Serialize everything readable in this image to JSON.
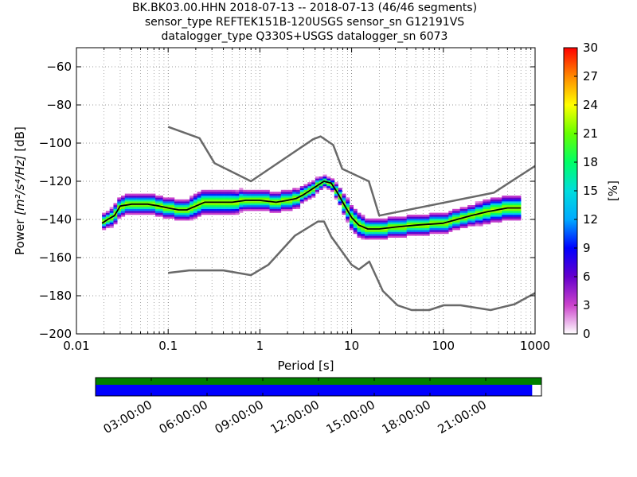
{
  "chart_data": {
    "type": "heatmap",
    "title_lines": [
      "BK.BK03.00.HHN   2018-07-13 -- 2018-07-13  (46/46 segments)",
      "sensor_type REFTEK151B-120USGS sensor_sn G12191VS",
      "datalogger_type Q330S+USGS datalogger_sn 6073"
    ],
    "xlabel": "Period [s]",
    "ylabel_prefix": "Power ",
    "ylabel_units": "[m²/s⁴/Hz]",
    "ylabel_suffix": " [dB]",
    "x_scale": "log",
    "xlim": [
      0.01,
      1000
    ],
    "ylim": [
      -200,
      -50
    ],
    "x_ticks": [
      0.01,
      0.1,
      1,
      10,
      100,
      1000
    ],
    "x_tick_labels": [
      "0.01",
      "0.1",
      "1",
      "10",
      "100",
      "1000"
    ],
    "y_ticks": [
      -200,
      -180,
      -160,
      -140,
      -120,
      -100,
      -80,
      -60
    ],
    "y_tick_labels": [
      "−200",
      "−180",
      "−160",
      "−140",
      "−120",
      "−100",
      "−80",
      "−60"
    ],
    "grid": "dotted",
    "colorbar": {
      "label": "[%]",
      "range": [
        0,
        30
      ],
      "ticks": [
        0,
        3,
        6,
        9,
        12,
        15,
        18,
        21,
        24,
        27,
        30
      ],
      "tick_labels": [
        "0",
        "3",
        "6",
        "9",
        "12",
        "15",
        "18",
        "21",
        "24",
        "27",
        "30"
      ]
    },
    "series": [
      {
        "role": "mode",
        "color": "#000000",
        "x": [
          0.019,
          0.022,
          0.026,
          0.03,
          0.04,
          0.06,
          0.08,
          0.1,
          0.13,
          0.16,
          0.2,
          0.25,
          0.3,
          0.4,
          0.5,
          0.7,
          1,
          1.5,
          2,
          2.5,
          3,
          4,
          5,
          6,
          7,
          8,
          10,
          12,
          15,
          20,
          30,
          50,
          100,
          200,
          300,
          500,
          700
        ],
        "y": [
          -142,
          -140,
          -138,
          -133,
          -132,
          -132,
          -133,
          -134,
          -135,
          -135,
          -133,
          -131,
          -131,
          -131,
          -131,
          -130,
          -130,
          -131,
          -130,
          -129,
          -127,
          -123,
          -120,
          -121,
          -126,
          -131,
          -139,
          -143,
          -145,
          -145,
          -144,
          -143,
          -142,
          -138,
          -136,
          -134,
          -134
        ]
      },
      {
        "role": "noise_model_high",
        "color": "#696969",
        "x": [
          0.1,
          0.22,
          0.32,
          0.8,
          3.8,
          4.6,
          6.3,
          7.9,
          15.4,
          20,
          354.8,
          1000
        ],
        "y": [
          -91.5,
          -97.4,
          -110.5,
          -120,
          -98,
          -96.5,
          -101,
          -113.5,
          -120,
          -138,
          -126,
          -112
        ]
      },
      {
        "role": "noise_model_low",
        "color": "#696969",
        "x": [
          0.1,
          0.17,
          0.4,
          0.8,
          1.24,
          2.4,
          4.3,
          5,
          6,
          10,
          12,
          15.6,
          21.9,
          31.6,
          45,
          70,
          101,
          154,
          328,
          600,
          1000
        ],
        "y": [
          -168,
          -166.7,
          -166.7,
          -169.2,
          -163.7,
          -148.6,
          -141.1,
          -141.1,
          -149,
          -163.8,
          -166.2,
          -162.1,
          -177.5,
          -185,
          -187.5,
          -187.5,
          -185,
          -185,
          -187.5,
          -184.4,
          -178.6
        ]
      }
    ],
    "heatmap_profile": {
      "x": [
        0.019,
        0.022,
        0.026,
        0.03,
        0.04,
        0.06,
        0.08,
        0.1,
        0.13,
        0.16,
        0.2,
        0.25,
        0.3,
        0.4,
        0.5,
        0.7,
        1,
        1.5,
        2,
        2.5,
        3,
        4,
        5,
        6,
        7,
        8,
        10,
        12,
        15,
        20,
        30,
        50,
        100,
        200,
        300,
        500,
        700
      ],
      "y_center": [
        -142,
        -140,
        -138,
        -133,
        -132,
        -132,
        -133,
        -134,
        -135,
        -135,
        -133,
        -131,
        -131,
        -131,
        -131,
        -130,
        -130,
        -131,
        -130,
        -129,
        -127,
        -123,
        -120,
        -121,
        -126,
        -131,
        -139,
        -143,
        -145,
        -145,
        -144,
        -143,
        -142,
        -138,
        -136,
        -134,
        -134
      ],
      "y_spread": [
        3,
        3,
        4,
        4,
        4,
        4,
        4,
        4,
        4,
        4,
        5,
        5,
        5,
        5,
        5,
        4,
        4,
        4,
        4,
        4,
        3,
        3,
        2,
        2,
        3,
        4,
        5,
        5,
        4,
        4,
        4,
        4,
        4,
        4,
        5,
        5,
        5
      ]
    },
    "data_availability": {
      "time_labels": [
        "03:00:00",
        "06:00:00",
        "09:00:00",
        "12:00:00",
        "15:00:00",
        "18:00:00",
        "21:00:00"
      ],
      "time_ticks_hours": [
        3,
        6,
        9,
        12,
        15,
        18,
        21
      ],
      "range_hours": [
        0,
        24
      ],
      "gap_from_hours": 23.5,
      "data_color": "#0000ff",
      "segment_color": "#008000"
    }
  }
}
